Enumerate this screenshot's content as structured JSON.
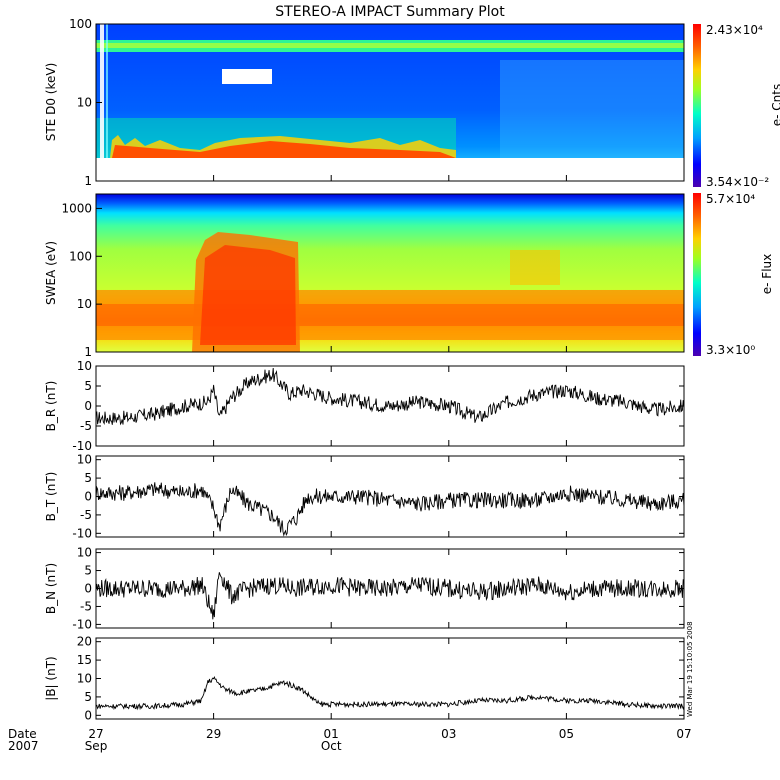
{
  "title": "STEREO-A IMPACT Summary Plot",
  "date_label": {
    "line1": "Date",
    "line2": "2007"
  },
  "timestamp": "Wed Mar 19 15:10:05 2008",
  "x_axis": {
    "days": [
      {
        "day": 0,
        "label": "27",
        "month": "Sep"
      },
      {
        "day": 2,
        "label": "29",
        "month": ""
      },
      {
        "day": 4,
        "label": "01",
        "month": "Oct"
      },
      {
        "day": 6,
        "label": "03",
        "month": ""
      },
      {
        "day": 8,
        "label": "05",
        "month": ""
      },
      {
        "day": 10,
        "label": "07",
        "month": ""
      }
    ],
    "range_days": [
      0,
      10
    ]
  },
  "colors": {
    "colormap": [
      "#4b00b0",
      "#0000ff",
      "#00a0ff",
      "#00ffc8",
      "#a0ff20",
      "#ffd000",
      "#ff6000",
      "#ff0000"
    ],
    "trace": "#000000"
  },
  "chart_data": [
    {
      "type": "heatmap",
      "ylabel": "STE D0 (keV)",
      "yscale": "log",
      "ylim": [
        1,
        100
      ],
      "yticks": [
        "1",
        "10",
        "100"
      ],
      "colorbar": {
        "max": "2.43×10⁴",
        "min": "3.54×10⁻²",
        "label": "e- Cnts"
      },
      "features": [
        {
          "kind": "band",
          "energy": 55,
          "day_range": [
            0,
            10
          ],
          "level": 0.45
        },
        {
          "kind": "low_energy_enhancement",
          "day_range": [
            2.2,
            3.5
          ],
          "level": 0.9
        },
        {
          "kind": "data_gap",
          "day_range": [
            2.1,
            2.9
          ],
          "energy_range": [
            20,
            28
          ]
        }
      ]
    },
    {
      "type": "heatmap",
      "ylabel": "SWEA (eV)",
      "yscale": "log",
      "ylim": [
        1,
        2000
      ],
      "yticks": [
        "1",
        "10",
        "100",
        "1000"
      ],
      "colorbar": {
        "max": "5.7×10⁴",
        "min": "3.3×10⁰",
        "label": "e- Flux"
      },
      "features": [
        {
          "kind": "enhancement",
          "day_range": [
            1.75,
            3.4
          ],
          "energy_range": [
            20,
            600
          ],
          "level": 0.9
        },
        {
          "kind": "enhancement",
          "day_range": [
            7.0,
            8.4
          ],
          "energy_range": [
            30,
            150
          ],
          "level": 0.75
        }
      ]
    },
    {
      "type": "line",
      "ylabel": "B_R (nT)",
      "ylim": [
        -10,
        10
      ],
      "yticks": [
        "-10",
        "-5",
        "0",
        "5",
        "10"
      ],
      "x": [
        0,
        0.5,
        1,
        1.5,
        1.9,
        2.0,
        2.1,
        2.3,
        2.6,
        3.0,
        3.3,
        3.5,
        4.0,
        4.5,
        5.0,
        5.5,
        6.0,
        6.5,
        7.0,
        7.5,
        8.0,
        8.5,
        9.0,
        9.5,
        10.0
      ],
      "y": [
        -3,
        -3,
        -2,
        0,
        1,
        4,
        -3,
        2,
        6,
        8,
        3,
        4,
        2,
        1,
        0,
        1,
        0,
        -3,
        1,
        3,
        4,
        2,
        1,
        -1,
        0
      ],
      "noise": 1.8
    },
    {
      "type": "line",
      "ylabel": "B_T (nT)",
      "ylim": [
        -11,
        11
      ],
      "yticks": [
        "-10",
        "-5",
        "0",
        "5",
        "10"
      ],
      "x": [
        0,
        0.5,
        1,
        1.5,
        1.8,
        2.0,
        2.1,
        2.3,
        2.6,
        3.0,
        3.2,
        3.4,
        3.6,
        4.0,
        4.5,
        5.0,
        5.5,
        6.0,
        6.5,
        7.0,
        7.5,
        8.0,
        8.5,
        9.0,
        9.5,
        10.0
      ],
      "y": [
        1,
        1,
        2,
        1,
        2,
        -3,
        -8,
        2,
        -2,
        -5,
        -9,
        -6,
        0,
        0,
        0,
        -1,
        -2,
        -1,
        -1,
        -1,
        -1,
        1,
        0,
        -1,
        -2,
        -1
      ],
      "noise": 2.2
    },
    {
      "type": "line",
      "ylabel": "B_N (nT)",
      "ylim": [
        -11,
        11
      ],
      "yticks": [
        "-10",
        "-5",
        "0",
        "5",
        "10"
      ],
      "x": [
        0,
        0.5,
        1,
        1.5,
        1.8,
        2.0,
        2.1,
        2.3,
        2.6,
        3.0,
        3.4,
        4.0,
        4.5,
        5.0,
        5.5,
        6.0,
        6.5,
        7.0,
        7.5,
        8.0,
        8.5,
        9.0,
        9.5,
        10.0
      ],
      "y": [
        0,
        0,
        0,
        0,
        1,
        -8,
        5,
        -2,
        0,
        1,
        0,
        1,
        0,
        0,
        1,
        0,
        -1,
        0,
        1,
        -1,
        0,
        0,
        0,
        0
      ],
      "noise": 2.6
    },
    {
      "type": "line",
      "ylabel": "|B| (nT)",
      "ylim": [
        -1,
        21
      ],
      "yticks": [
        "0",
        "5",
        "10",
        "15",
        "20"
      ],
      "x": [
        0,
        0.5,
        1,
        1.5,
        1.8,
        1.9,
        2.0,
        2.2,
        2.4,
        2.8,
        3.0,
        3.2,
        3.5,
        3.8,
        4.0,
        4.5,
        5.0,
        5.5,
        6.0,
        6.5,
        7.0,
        7.5,
        8.0,
        8.5,
        9.0,
        9.5,
        10.0
      ],
      "y": [
        2.5,
        2.5,
        2.5,
        3,
        4,
        9,
        10,
        7,
        6,
        7,
        8,
        9,
        7,
        3,
        3,
        3,
        3,
        3,
        3,
        4,
        4,
        5,
        4,
        4,
        3,
        2.5,
        2.5
      ],
      "noise": 0.7
    }
  ]
}
